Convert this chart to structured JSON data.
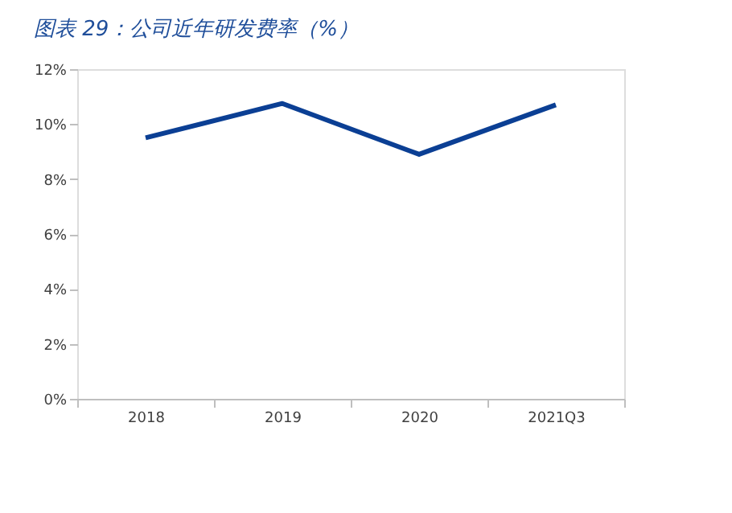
{
  "chart_data": {
    "type": "line",
    "title": "图表 29：公司近年研发费率（%）",
    "categories": [
      "2018",
      "2019",
      "2020",
      "2021Q3"
    ],
    "series": [
      {
        "color": "#0b3f94",
        "values": [
          9.5,
          10.75,
          8.9,
          10.7
        ]
      }
    ],
    "ylim": [
      0,
      12
    ],
    "yticks": [
      {
        "value": 0,
        "label": "0%"
      },
      {
        "value": 2,
        "label": "2%"
      },
      {
        "value": 4,
        "label": "4%"
      },
      {
        "value": 6,
        "label": "6%"
      },
      {
        "value": 8,
        "label": "8%"
      },
      {
        "value": 10,
        "label": "10%"
      },
      {
        "value": 12,
        "label": "12%"
      }
    ],
    "grid": false,
    "legend": false,
    "marker": "none",
    "line_style": "solid"
  }
}
